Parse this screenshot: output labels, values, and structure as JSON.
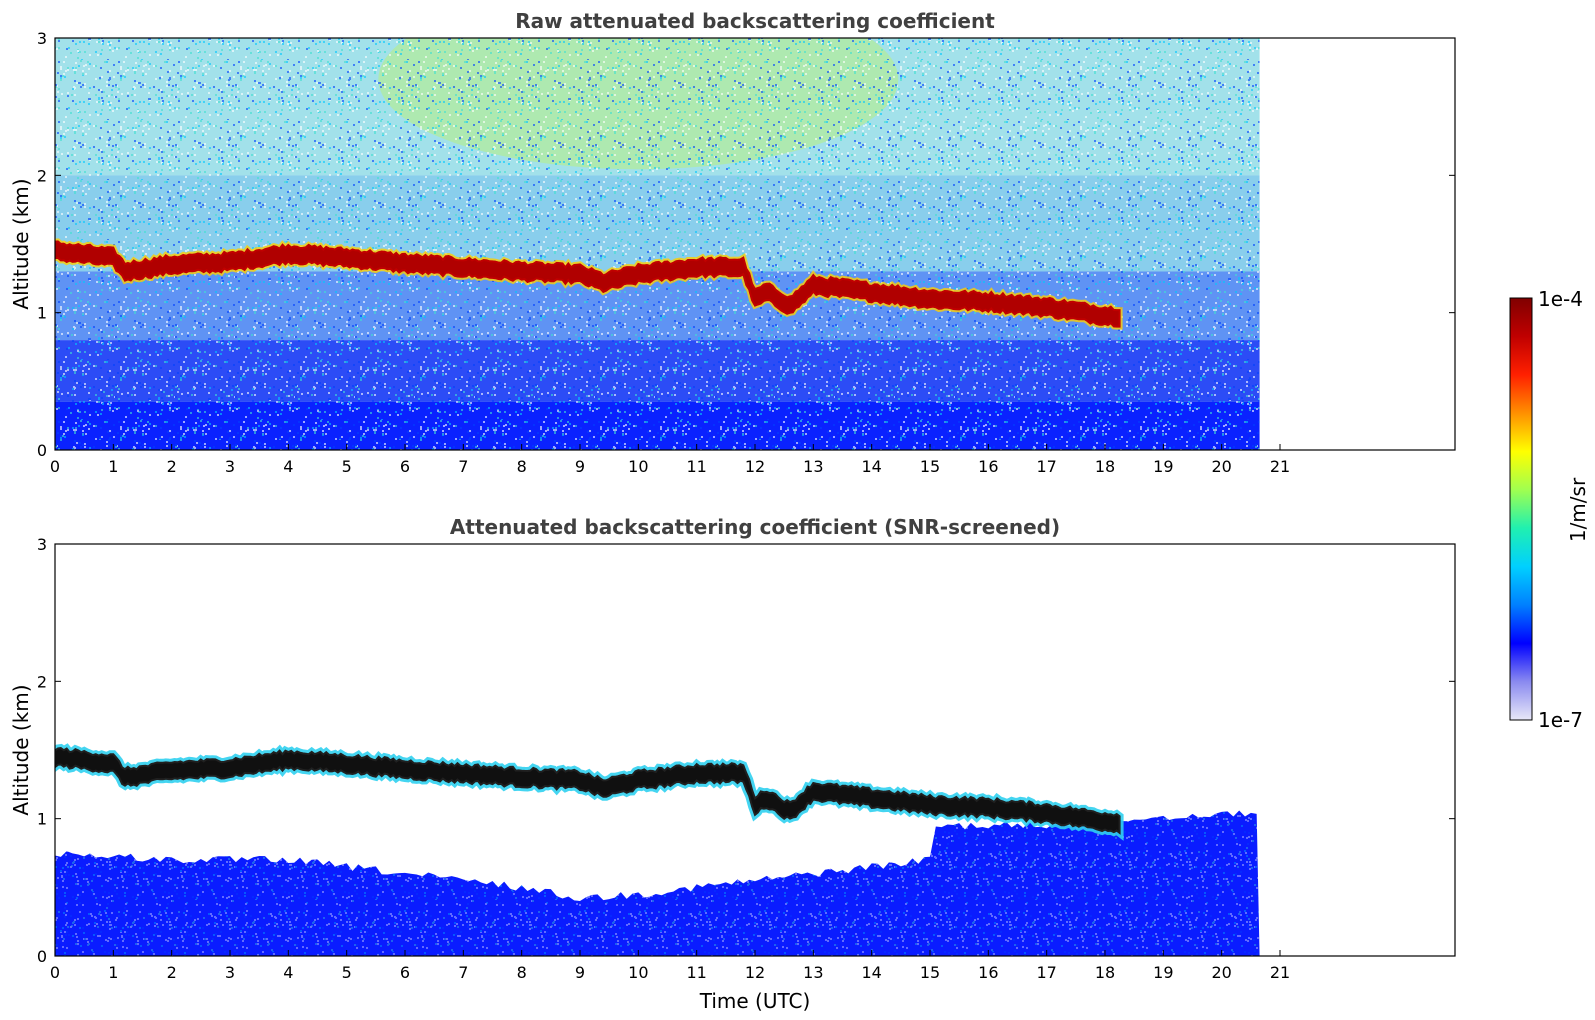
{
  "chart_data": [
    {
      "type": "heatmap",
      "title": "Raw attenuated backscattering coefficient",
      "xlabel": "",
      "ylabel": "Altitude (km)",
      "xlim": [
        0,
        24
      ],
      "ylim": [
        0,
        3
      ],
      "x_ticks": [
        "0",
        "1",
        "2",
        "3",
        "4",
        "5",
        "6",
        "7",
        "8",
        "9",
        "10",
        "11",
        "12",
        "13",
        "14",
        "15",
        "16",
        "17",
        "18",
        "19",
        "20",
        "21"
      ],
      "y_ticks": [
        "0",
        "1",
        "2",
        "3"
      ],
      "data_end_time": 20.65,
      "cloud_layer": {
        "time": [
          0,
          1,
          1.2,
          2,
          3,
          4,
          5,
          6,
          7,
          8,
          9,
          9.4,
          10,
          11,
          11.8,
          12,
          12.2,
          12.6,
          13,
          14,
          15,
          16,
          17,
          18,
          18.3
        ],
        "altitude_km": [
          1.45,
          1.4,
          1.3,
          1.35,
          1.37,
          1.43,
          1.4,
          1.36,
          1.33,
          1.3,
          1.28,
          1.22,
          1.28,
          1.33,
          1.33,
          1.1,
          1.15,
          1.05,
          1.2,
          1.15,
          1.1,
          1.08,
          1.04,
          0.98,
          0.97
        ]
      }
    },
    {
      "type": "heatmap",
      "title": "Attenuated backscattering coefficient (SNR-screened)",
      "xlabel": "Time (UTC)",
      "ylabel": "Altitude (km)",
      "xlim": [
        0,
        24
      ],
      "ylim": [
        0,
        3
      ],
      "x_ticks": [
        "0",
        "1",
        "2",
        "3",
        "4",
        "5",
        "6",
        "7",
        "8",
        "9",
        "10",
        "11",
        "12",
        "13",
        "14",
        "15",
        "16",
        "17",
        "18",
        "19",
        "20",
        "21"
      ],
      "y_ticks": [
        "0",
        "1",
        "2",
        "3"
      ],
      "data_end_time": 20.65,
      "aerosol_top": {
        "time": [
          0,
          2,
          4,
          6,
          8,
          9,
          10,
          11,
          12,
          13,
          14,
          15,
          15.1,
          17,
          18.5,
          20.65
        ],
        "altitude_km": [
          0.75,
          0.7,
          0.7,
          0.6,
          0.5,
          0.42,
          0.45,
          0.5,
          0.55,
          0.6,
          0.65,
          0.7,
          0.95,
          0.95,
          1.0,
          1.05
        ]
      }
    }
  ],
  "colorbar": {
    "label": "1/m/sr",
    "max_label": "1e-4",
    "min_label": "1e-7",
    "colormap": [
      "#e8e8f8",
      "#8a8af0",
      "#0000ff",
      "#0080ff",
      "#00d0ff",
      "#20f0b0",
      "#a0ff50",
      "#ffff00",
      "#ff9000",
      "#ff2000",
      "#c00000",
      "#800000"
    ]
  }
}
